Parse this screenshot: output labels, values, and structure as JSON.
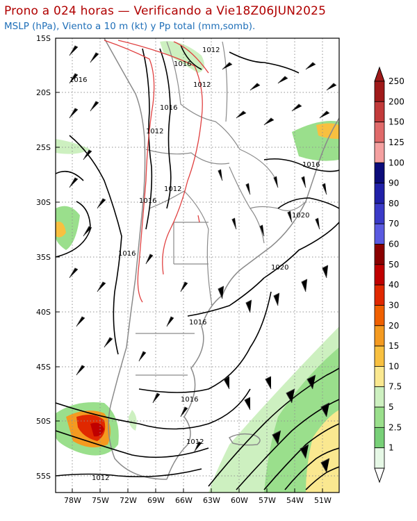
{
  "title": "Prono a 024 horas — Verificando a Vie18Z06JUN2025",
  "subtitle": "MSLP (hPa), Viento a 10 m (kt) y Pp total (mm,somb).",
  "map": {
    "lat_labels": [
      "15S",
      "20S",
      "25S",
      "30S",
      "35S",
      "40S",
      "45S",
      "50S",
      "55S"
    ],
    "lon_labels": [
      "78W",
      "75W",
      "72W",
      "69W",
      "66W",
      "63W",
      "60W",
      "57W",
      "54W",
      "51W"
    ],
    "isobar_labels": [
      "1012",
      "1016",
      "1012",
      "1016",
      "1012",
      "1016",
      "1012",
      "1016",
      "1016",
      "1020",
      "1020",
      "1016",
      "1016",
      "1016",
      "1012",
      "1012"
    ]
  },
  "colorbar": {
    "labels": [
      "250",
      "200",
      "150",
      "125",
      "100",
      "90",
      "80",
      "70",
      "60",
      "50",
      "40",
      "30",
      "20",
      "15",
      "10",
      "7.5",
      "5",
      "2.5",
      "1"
    ],
    "colors": [
      "#a01a1a",
      "#c23a3a",
      "#e06a6a",
      "#f4a0a0",
      "#0c0c7a",
      "#2020a8",
      "#3a3ac8",
      "#5a5ae0",
      "#8a0000",
      "#c00000",
      "#e02800",
      "#f06000",
      "#f49a20",
      "#f8c040",
      "#fae890",
      "#cdf0c0",
      "#9adf8c",
      "#78d078",
      "#e6f8e6"
    ],
    "top_color": "#a01a1a",
    "bottom_color": "#ffffff"
  }
}
